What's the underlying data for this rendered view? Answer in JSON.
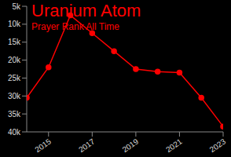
{
  "chart_data": {
    "type": "line",
    "title": "Uranium Atom",
    "subtitle": "Prayer Rank All Time",
    "x": [
      2014,
      2015,
      2016,
      2017,
      2018,
      2019,
      2020,
      2021,
      2022,
      2023
    ],
    "values": [
      30500,
      22000,
      7500,
      12500,
      17500,
      22500,
      23200,
      23500,
      30500,
      38500
    ],
    "color": "#ff0000",
    "marker": "o",
    "grid": false,
    "xlim": [
      2014,
      2023
    ],
    "xticks": [
      2015,
      2017,
      2019,
      2021,
      2023
    ],
    "ylim": [
      40000,
      5000
    ],
    "yticks": [
      {
        "value": 5000,
        "label": "5k"
      },
      {
        "value": 10000,
        "label": "10k"
      },
      {
        "value": 15000,
        "label": "15k"
      },
      {
        "value": 20000,
        "label": "20k"
      },
      {
        "value": 25000,
        "label": "25k"
      },
      {
        "value": 30000,
        "label": "30k"
      },
      {
        "value": 35000,
        "label": "35k"
      },
      {
        "value": 40000,
        "label": "40k"
      }
    ]
  }
}
